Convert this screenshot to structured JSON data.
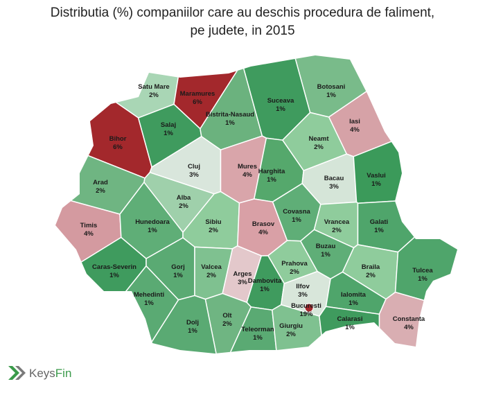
{
  "title_lines": [
    "Distributia (%) companiilor care au deschis procedura de faliment,",
    "pe judete, in 2015"
  ],
  "brand_parts": [
    "Keys",
    "Fin"
  ],
  "regions": [
    {
      "name": "Satu Mare",
      "value": 2,
      "value_label": "2%",
      "color": "#a9d6b5"
    },
    {
      "name": "Maramures",
      "value": 6,
      "value_label": "6%",
      "color": "#a3282c"
    },
    {
      "name": "Bihor",
      "value": 6,
      "value_label": "6%",
      "color": "#a3282c"
    },
    {
      "name": "Salaj",
      "value": 1,
      "value_label": "1%",
      "color": "#3f9b5e"
    },
    {
      "name": "Bistrita-Nasaud",
      "value": 1,
      "value_label": "1%",
      "color": "#6bb27e"
    },
    {
      "name": "Suceava",
      "value": 1,
      "value_label": "1%",
      "color": "#3f9b5e"
    },
    {
      "name": "Botosani",
      "value": 1,
      "value_label": "1%",
      "color": "#79bb8a"
    },
    {
      "name": "Iasi",
      "value": 4,
      "value_label": "4%",
      "color": "#d6a2a7"
    },
    {
      "name": "Neamt",
      "value": 2,
      "value_label": "2%",
      "color": "#8fcc9c"
    },
    {
      "name": "Cluj",
      "value": 3,
      "value_label": "3%",
      "color": "#d9e6dc"
    },
    {
      "name": "Mures",
      "value": 4,
      "value_label": "4%",
      "color": "#d9a5aa"
    },
    {
      "name": "Harghita",
      "value": 1,
      "value_label": "1%",
      "color": "#55a86c"
    },
    {
      "name": "Bacau",
      "value": 3,
      "value_label": "3%",
      "color": "#d5e5d8"
    },
    {
      "name": "Vaslui",
      "value": 1,
      "value_label": "1%",
      "color": "#3b9a5a"
    },
    {
      "name": "Arad",
      "value": 2,
      "value_label": "2%",
      "color": "#6fb582"
    },
    {
      "name": "Alba",
      "value": 2,
      "value_label": "2%",
      "color": "#9fd0ab"
    },
    {
      "name": "Timis",
      "value": 4,
      "value_label": "4%",
      "color": "#d49aa0"
    },
    {
      "name": "Hunedoara",
      "value": 1,
      "value_label": "1%",
      "color": "#5fae77"
    },
    {
      "name": "Sibiu",
      "value": 2,
      "value_label": "2%",
      "color": "#8fcc9c"
    },
    {
      "name": "Brasov",
      "value": 4,
      "value_label": "4%",
      "color": "#d9a0a6"
    },
    {
      "name": "Covasna",
      "value": 1,
      "value_label": "1%",
      "color": "#5fae77"
    },
    {
      "name": "Vrancea",
      "value": 2,
      "value_label": "2%",
      "color": "#8fcc9c"
    },
    {
      "name": "Galati",
      "value": 1,
      "value_label": "1%",
      "color": "#4fa56b"
    },
    {
      "name": "Caras-Severin",
      "value": 1,
      "value_label": "1%",
      "color": "#3f9b5e"
    },
    {
      "name": "Gorj",
      "value": 1,
      "value_label": "1%",
      "color": "#5aaa73"
    },
    {
      "name": "Valcea",
      "value": 2,
      "value_label": "2%",
      "color": "#7fc190"
    },
    {
      "name": "Arges",
      "value": 3,
      "value_label": "3%",
      "color": "#e3c8cb"
    },
    {
      "name": "Prahova",
      "value": 2,
      "value_label": "2%",
      "color": "#8fcc9c"
    },
    {
      "name": "Buzau",
      "value": 1,
      "value_label": "1%",
      "color": "#5fae77"
    },
    {
      "name": "Braila",
      "value": 2,
      "value_label": "2%",
      "color": "#8fcc9c"
    },
    {
      "name": "Tulcea",
      "value": 1,
      "value_label": "1%",
      "color": "#4fa56b"
    },
    {
      "name": "Dambovita",
      "value": 1,
      "value_label": "1%",
      "color": "#3f9b5e"
    },
    {
      "name": "Mehedinti",
      "value": 1,
      "value_label": "1%",
      "color": "#5aaa73"
    },
    {
      "name": "Ilfov",
      "value": 3,
      "value_label": "3%",
      "color": "#d8e6da"
    },
    {
      "name": "Ialomita",
      "value": 1,
      "value_label": "1%",
      "color": "#4fa56b"
    },
    {
      "name": "Bucuresti",
      "value": 19,
      "value_label": "19%",
      "color": "#a3282c"
    },
    {
      "name": "Olt",
      "value": 2,
      "value_label": "2%",
      "color": "#6fb582"
    },
    {
      "name": "Dolj",
      "value": 1,
      "value_label": "1%",
      "color": "#5aaa73"
    },
    {
      "name": "Teleorman",
      "value": 1,
      "value_label": "1%",
      "color": "#5aaa73"
    },
    {
      "name": "Giurgiu",
      "value": 2,
      "value_label": "2%",
      "color": "#7fc190"
    },
    {
      "name": "Calarasi",
      "value": 1,
      "value_label": "1%",
      "color": "#3f9b5e"
    },
    {
      "name": "Constanta",
      "value": 4,
      "value_label": "4%",
      "color": "#d9aeb2"
    }
  ]
}
